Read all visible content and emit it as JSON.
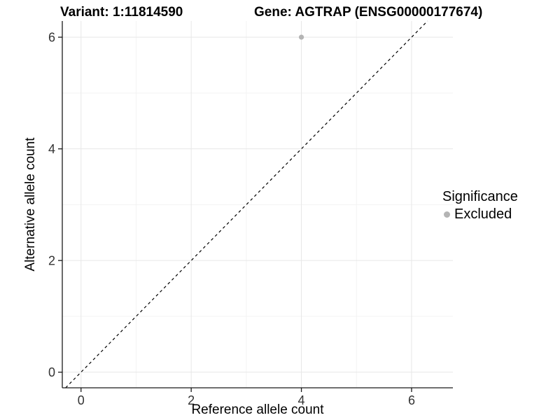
{
  "chart_data": {
    "type": "scatter",
    "title_left": "Variant: 1:11814590",
    "title_right": "Gene: AGTRAP (ENSG00000177674)",
    "xlabel": "Reference allele count",
    "ylabel": "Alternative allele count",
    "x_ticks": [
      0,
      2,
      4,
      6
    ],
    "y_ticks": [
      0,
      2,
      4,
      6
    ],
    "x_minor_gridlines": [
      1,
      3,
      5
    ],
    "y_minor_gridlines": [
      1,
      3,
      5
    ],
    "xlim": [
      -0.34,
      6.75
    ],
    "ylim": [
      -0.28,
      6.29
    ],
    "grid": true,
    "points": [
      {
        "x": 4,
        "y": 6,
        "series": "Excluded"
      }
    ],
    "identity_line": {
      "equation": "y = x",
      "style": "dashed"
    },
    "legend": {
      "title": "Significance",
      "position": "right",
      "items": [
        {
          "label": "Excluded",
          "color": "#b4b4b4"
        }
      ]
    },
    "colors": {
      "point": "#b4b4b4",
      "major_grid": "#e7e7e7",
      "minor_grid": "#f3f3f3",
      "axis": "#1a1a1a",
      "tick_label": "#333333",
      "dashed_line": "#000000"
    }
  }
}
